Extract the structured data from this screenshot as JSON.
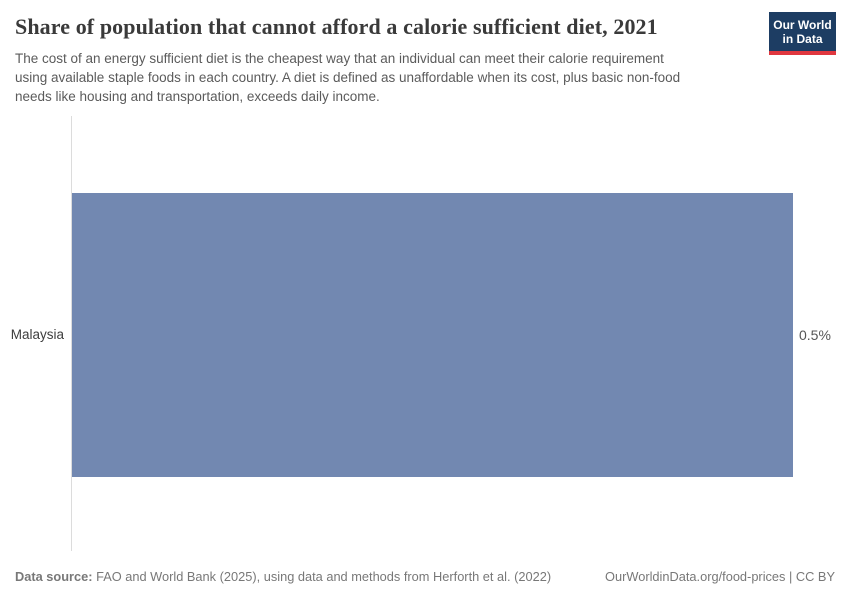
{
  "header": {
    "title": "Share of population that cannot afford a calorie sufficient diet, 2021",
    "subtitle": "The cost of an energy sufficient diet is the cheapest way that an individual can meet their calorie requirement using available staple foods in each country. A diet is defined as unaffordable when its cost, plus basic non-food needs like housing and transportation, exceeds daily income.",
    "logo": {
      "line1": "Our World",
      "line2": "in Data"
    }
  },
  "chart_data": {
    "type": "bar",
    "orientation": "horizontal",
    "title": "Share of population that cannot afford a calorie sufficient diet, 2021",
    "categories": [
      "Malaysia"
    ],
    "values": [
      0.5
    ],
    "value_labels": [
      "0.5%"
    ],
    "unit": "%",
    "xlim": [
      0,
      0.5
    ],
    "grid": false,
    "legend": false,
    "bar_color": "#7288b1",
    "axis_line_color": "#dcdcdc"
  },
  "footer": {
    "source_label": "Data source:",
    "source_text": " FAO and World Bank (2025), using data and methods from Herforth et al. (2022)",
    "link_text": "OurWorldinData.org/food-prices | CC BY"
  },
  "colors": {
    "bar": "#7288b1",
    "logo_background": "#1d3d63",
    "logo_accent": "#e0373f",
    "title_text": "#3a3a3a",
    "subtitle_text": "#5b5b5b",
    "footer_text": "#787878"
  }
}
